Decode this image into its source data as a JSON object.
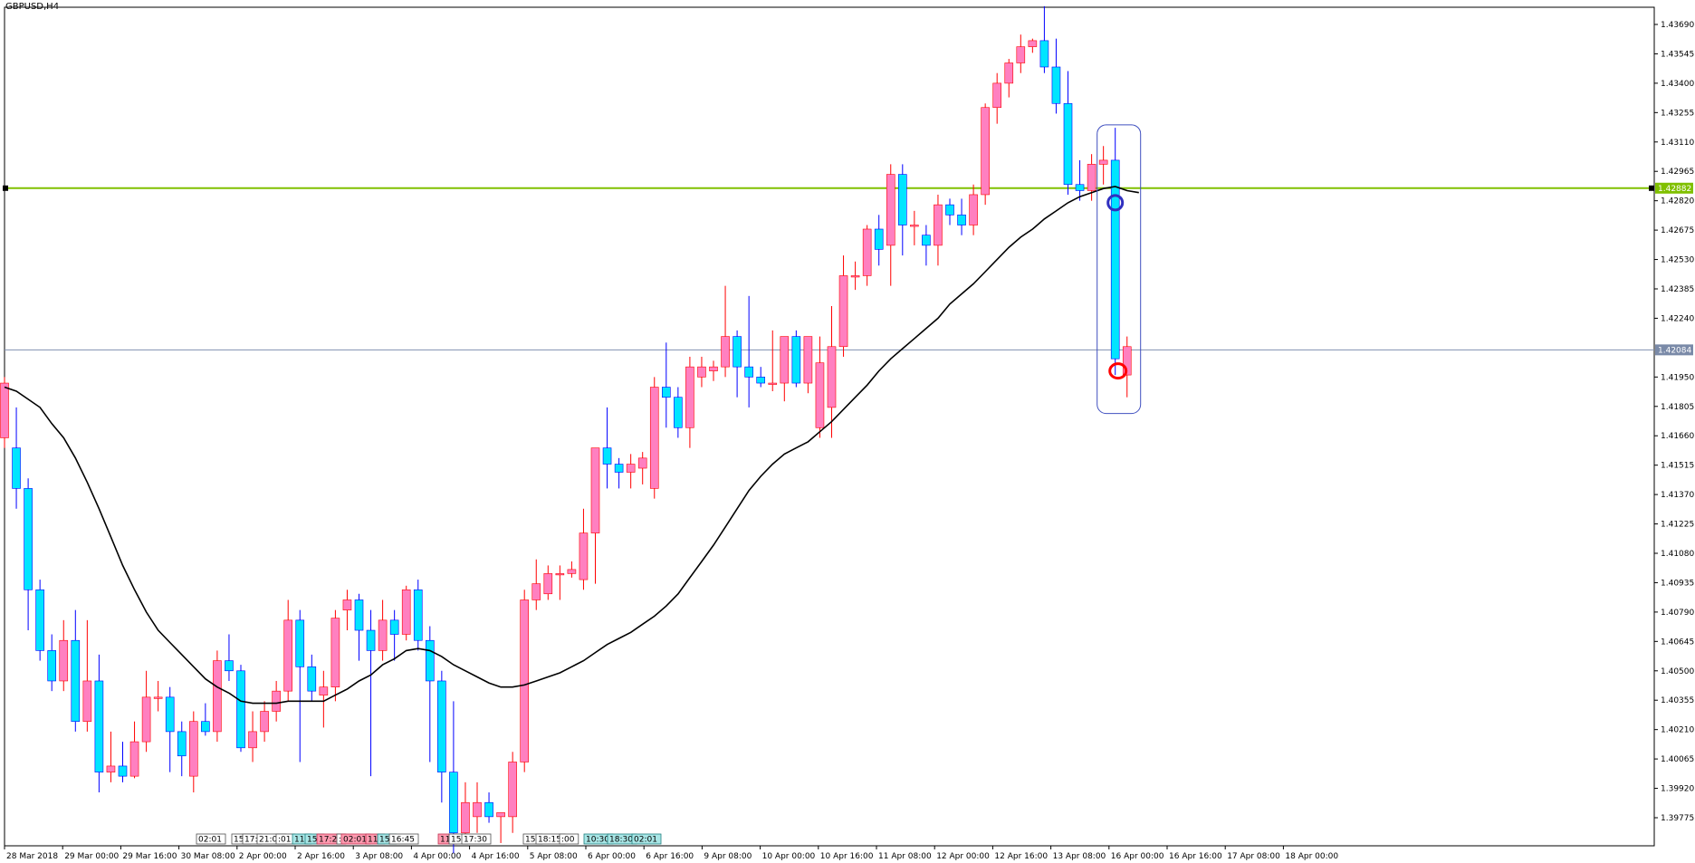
{
  "window": {
    "title": "GBPUSD,H4"
  },
  "colors": {
    "bull_candle": "#ff80c0",
    "bear_candle": "#00e5ff",
    "bull_wick": "#ff0000",
    "bear_wick": "#0000ff",
    "moving_average": "#000000",
    "green_line": "#80c000",
    "gray_line": "#8090b0",
    "blue_circle": "#3030c0",
    "red_circle": "#ff0000",
    "rectangle": "#4050c0"
  },
  "price_axis": {
    "labels": [
      "1.43690",
      "1.43545",
      "1.43400",
      "1.43255",
      "1.43110",
      "1.42965",
      "1.42820",
      "1.42675",
      "1.42530",
      "1.42385",
      "1.42240",
      "1.41950",
      "1.41805",
      "1.41660",
      "1.41515",
      "1.41370",
      "1.41225",
      "1.41080",
      "1.40935",
      "1.40790",
      "1.40645",
      "1.40500",
      "1.40355",
      "1.40210",
      "1.40065",
      "1.39920",
      "1.39775"
    ],
    "green_line_label": "1.42882",
    "gray_line_label": "1.42084"
  },
  "time_axis": {
    "labels": [
      "28 Mar 2018",
      "29 Mar 00:00",
      "29 Mar 16:00",
      "30 Mar 08:00",
      "2 Apr 00:00",
      "2 Apr 16:00",
      "3 Apr 08:00",
      "4 Apr 00:00",
      "4 Apr 16:00",
      "5 Apr 08:00",
      "6 Apr 00:00",
      "6 Apr 16:00",
      "9 Apr 08:00",
      "10 Apr 00:00",
      "10 Apr 16:00",
      "11 Apr 08:00",
      "12 Apr 00:00",
      "12 Apr 16:00",
      "13 Apr 08:00",
      "16 Apr 00:00",
      "16 Apr 16:00",
      "17 Apr 08:00",
      "18 Apr 00:00"
    ]
  },
  "event_tags": [
    {
      "text": "02:01",
      "color": "gray"
    },
    {
      "text": "15:",
      "color": "gray"
    },
    {
      "text": "17:",
      "color": "gray"
    },
    {
      "text": "21:00",
      "color": "gray"
    },
    {
      "text": ":01",
      "color": "gray"
    },
    {
      "text": "11:",
      "color": "teal"
    },
    {
      "text": "15:",
      "color": "teal"
    },
    {
      "text": "17:20",
      "color": "pink"
    },
    {
      "text": ":",
      "color": "gray"
    },
    {
      "text": "02:01",
      "color": "pink"
    },
    {
      "text": "11:",
      "color": "pink"
    },
    {
      "text": "15:",
      "color": "teal"
    },
    {
      "text": "16:45",
      "color": "gray"
    },
    {
      "text": "11:",
      "color": "pink"
    },
    {
      "text": "15:",
      "color": "gray"
    },
    {
      "text": "17:30",
      "color": "gray"
    },
    {
      "text": "15:",
      "color": "gray"
    },
    {
      "text": "18:15",
      "color": "gray"
    },
    {
      "text": ":00",
      "color": "gray"
    },
    {
      "text": "10:30",
      "color": "teal"
    },
    {
      "text": "18:30",
      "color": "teal"
    },
    {
      "text": "02:01",
      "color": "teal"
    }
  ],
  "chart_data": {
    "type": "candlestick",
    "symbol": "GBPUSD",
    "timeframe": "H4",
    "ylim": [
      1.397,
      1.4378
    ],
    "horizontal_lines": [
      1.42882,
      1.42084
    ],
    "candles": [
      {
        "o": 1.4165,
        "h": 1.4195,
        "l": 1.416,
        "c": 1.4192
      },
      {
        "o": 1.416,
        "h": 1.418,
        "l": 1.413,
        "c": 1.414
      },
      {
        "o": 1.414,
        "h": 1.4145,
        "l": 1.407,
        "c": 1.409
      },
      {
        "o": 1.409,
        "h": 1.4095,
        "l": 1.4055,
        "c": 1.406
      },
      {
        "o": 1.406,
        "h": 1.4068,
        "l": 1.404,
        "c": 1.4045
      },
      {
        "o": 1.4045,
        "h": 1.4075,
        "l": 1.404,
        "c": 1.4065
      },
      {
        "o": 1.4065,
        "h": 1.408,
        "l": 1.402,
        "c": 1.4025
      },
      {
        "o": 1.4025,
        "h": 1.4075,
        "l": 1.402,
        "c": 1.4045
      },
      {
        "o": 1.4045,
        "h": 1.4058,
        "l": 1.399,
        "c": 1.4
      },
      {
        "o": 1.4,
        "h": 1.402,
        "l": 1.3995,
        "c": 1.4003
      },
      {
        "o": 1.4003,
        "h": 1.4015,
        "l": 1.3995,
        "c": 1.3998
      },
      {
        "o": 1.3998,
        "h": 1.4025,
        "l": 1.3997,
        "c": 1.4015
      },
      {
        "o": 1.4015,
        "h": 1.405,
        "l": 1.401,
        "c": 1.4037
      },
      {
        "o": 1.4037,
        "h": 1.4045,
        "l": 1.403,
        "c": 1.4037
      },
      {
        "o": 1.4037,
        "h": 1.4042,
        "l": 1.4,
        "c": 1.402
      },
      {
        "o": 1.402,
        "h": 1.4025,
        "l": 1.3998,
        "c": 1.4008
      },
      {
        "o": 1.3998,
        "h": 1.403,
        "l": 1.399,
        "c": 1.4025
      },
      {
        "o": 1.4025,
        "h": 1.4034,
        "l": 1.4018,
        "c": 1.402
      },
      {
        "o": 1.402,
        "h": 1.406,
        "l": 1.4015,
        "c": 1.4055
      },
      {
        "o": 1.4055,
        "h": 1.4068,
        "l": 1.4045,
        "c": 1.405
      },
      {
        "o": 1.405,
        "h": 1.4053,
        "l": 1.401,
        "c": 1.4012
      },
      {
        "o": 1.4012,
        "h": 1.403,
        "l": 1.4005,
        "c": 1.402
      },
      {
        "o": 1.402,
        "h": 1.4035,
        "l": 1.4015,
        "c": 1.403
      },
      {
        "o": 1.403,
        "h": 1.4045,
        "l": 1.4025,
        "c": 1.404
      },
      {
        "o": 1.404,
        "h": 1.4085,
        "l": 1.4035,
        "c": 1.4075
      },
      {
        "o": 1.4075,
        "h": 1.408,
        "l": 1.4005,
        "c": 1.4052
      },
      {
        "o": 1.4052,
        "h": 1.4058,
        "l": 1.4035,
        "c": 1.404
      },
      {
        "o": 1.4038,
        "h": 1.405,
        "l": 1.4022,
        "c": 1.4042
      },
      {
        "o": 1.4042,
        "h": 1.408,
        "l": 1.4035,
        "c": 1.4076
      },
      {
        "o": 1.408,
        "h": 1.409,
        "l": 1.407,
        "c": 1.4085
      },
      {
        "o": 1.4085,
        "h": 1.4088,
        "l": 1.4055,
        "c": 1.407
      },
      {
        "o": 1.407,
        "h": 1.408,
        "l": 1.3998,
        "c": 1.406
      },
      {
        "o": 1.406,
        "h": 1.4085,
        "l": 1.4055,
        "c": 1.4075
      },
      {
        "o": 1.4075,
        "h": 1.408,
        "l": 1.4055,
        "c": 1.4068
      },
      {
        "o": 1.4068,
        "h": 1.4092,
        "l": 1.4065,
        "c": 1.409
      },
      {
        "o": 1.409,
        "h": 1.4095,
        "l": 1.406,
        "c": 1.4065
      },
      {
        "o": 1.4065,
        "h": 1.4072,
        "l": 1.4005,
        "c": 1.4045
      },
      {
        "o": 1.4045,
        "h": 1.405,
        "l": 1.3985,
        "c": 1.4
      },
      {
        "o": 1.4,
        "h": 1.4035,
        "l": 1.396,
        "c": 1.397
      },
      {
        "o": 1.397,
        "h": 1.3995,
        "l": 1.3965,
        "c": 1.3985
      },
      {
        "o": 1.3978,
        "h": 1.3995,
        "l": 1.397,
        "c": 1.3985
      },
      {
        "o": 1.3985,
        "h": 1.399,
        "l": 1.3975,
        "c": 1.3978
      },
      {
        "o": 1.3978,
        "h": 1.398,
        "l": 1.3965,
        "c": 1.398
      },
      {
        "o": 1.3978,
        "h": 1.401,
        "l": 1.397,
        "c": 1.4005
      },
      {
        "o": 1.4005,
        "h": 1.409,
        "l": 1.4,
        "c": 1.4085
      },
      {
        "o": 1.4085,
        "h": 1.4105,
        "l": 1.408,
        "c": 1.4093
      },
      {
        "o": 1.4088,
        "h": 1.4102,
        "l": 1.4085,
        "c": 1.4098
      },
      {
        "o": 1.4098,
        "h": 1.4102,
        "l": 1.4085,
        "c": 1.4098
      },
      {
        "o": 1.4098,
        "h": 1.4104,
        "l": 1.4096,
        "c": 1.41
      },
      {
        "o": 1.4095,
        "h": 1.413,
        "l": 1.409,
        "c": 1.4118
      },
      {
        "o": 1.4118,
        "h": 1.416,
        "l": 1.4093,
        "c": 1.416
      },
      {
        "o": 1.416,
        "h": 1.418,
        "l": 1.414,
        "c": 1.4152
      },
      {
        "o": 1.4152,
        "h": 1.4155,
        "l": 1.414,
        "c": 1.4148
      },
      {
        "o": 1.4148,
        "h": 1.4157,
        "l": 1.414,
        "c": 1.4152
      },
      {
        "o": 1.415,
        "h": 1.4158,
        "l": 1.4142,
        "c": 1.4155
      },
      {
        "o": 1.414,
        "h": 1.4195,
        "l": 1.4135,
        "c": 1.419
      },
      {
        "o": 1.419,
        "h": 1.4212,
        "l": 1.417,
        "c": 1.4185
      },
      {
        "o": 1.4185,
        "h": 1.419,
        "l": 1.4165,
        "c": 1.417
      },
      {
        "o": 1.417,
        "h": 1.4205,
        "l": 1.416,
        "c": 1.42
      },
      {
        "o": 1.4195,
        "h": 1.4205,
        "l": 1.419,
        "c": 1.42
      },
      {
        "o": 1.4198,
        "h": 1.4203,
        "l": 1.4193,
        "c": 1.42
      },
      {
        "o": 1.42,
        "h": 1.424,
        "l": 1.4195,
        "c": 1.4215
      },
      {
        "o": 1.4215,
        "h": 1.4218,
        "l": 1.4185,
        "c": 1.42
      },
      {
        "o": 1.42,
        "h": 1.4235,
        "l": 1.418,
        "c": 1.4195
      },
      {
        "o": 1.4195,
        "h": 1.42,
        "l": 1.419,
        "c": 1.4192
      },
      {
        "o": 1.4192,
        "h": 1.4218,
        "l": 1.4188,
        "c": 1.4192
      },
      {
        "o": 1.4192,
        "h": 1.4215,
        "l": 1.4183,
        "c": 1.4215
      },
      {
        "o": 1.4215,
        "h": 1.4218,
        "l": 1.419,
        "c": 1.4192
      },
      {
        "o": 1.4192,
        "h": 1.4212,
        "l": 1.4187,
        "c": 1.4215
      },
      {
        "o": 1.417,
        "h": 1.4215,
        "l": 1.4165,
        "c": 1.4202
      },
      {
        "o": 1.418,
        "h": 1.423,
        "l": 1.4165,
        "c": 1.421
      },
      {
        "o": 1.421,
        "h": 1.4255,
        "l": 1.4205,
        "c": 1.4245
      },
      {
        "o": 1.4245,
        "h": 1.4252,
        "l": 1.4238,
        "c": 1.4245
      },
      {
        "o": 1.4245,
        "h": 1.427,
        "l": 1.424,
        "c": 1.4268
      },
      {
        "o": 1.4268,
        "h": 1.4275,
        "l": 1.425,
        "c": 1.4258
      },
      {
        "o": 1.426,
        "h": 1.43,
        "l": 1.424,
        "c": 1.4295
      },
      {
        "o": 1.4295,
        "h": 1.43,
        "l": 1.4255,
        "c": 1.427
      },
      {
        "o": 1.427,
        "h": 1.4277,
        "l": 1.426,
        "c": 1.427
      },
      {
        "o": 1.4265,
        "h": 1.427,
        "l": 1.425,
        "c": 1.426
      },
      {
        "o": 1.426,
        "h": 1.4285,
        "l": 1.425,
        "c": 1.428
      },
      {
        "o": 1.428,
        "h": 1.4283,
        "l": 1.427,
        "c": 1.4275
      },
      {
        "o": 1.4275,
        "h": 1.4283,
        "l": 1.4265,
        "c": 1.427
      },
      {
        "o": 1.427,
        "h": 1.429,
        "l": 1.4265,
        "c": 1.4285
      },
      {
        "o": 1.4285,
        "h": 1.433,
        "l": 1.428,
        "c": 1.4328
      },
      {
        "o": 1.4328,
        "h": 1.4345,
        "l": 1.432,
        "c": 1.434
      },
      {
        "o": 1.434,
        "h": 1.4352,
        "l": 1.4333,
        "c": 1.435
      },
      {
        "o": 1.435,
        "h": 1.4364,
        "l": 1.4345,
        "c": 1.4358
      },
      {
        "o": 1.4358,
        "h": 1.4362,
        "l": 1.4355,
        "c": 1.4361
      },
      {
        "o": 1.4361,
        "h": 1.4378,
        "l": 1.4345,
        "c": 1.4348
      },
      {
        "o": 1.4348,
        "h": 1.4362,
        "l": 1.4325,
        "c": 1.433
      },
      {
        "o": 1.433,
        "h": 1.4346,
        "l": 1.4285,
        "c": 1.429
      },
      {
        "o": 1.429,
        "h": 1.4302,
        "l": 1.4282,
        "c": 1.4287
      },
      {
        "o": 1.4287,
        "h": 1.4305,
        "l": 1.4282,
        "c": 1.43
      },
      {
        "o": 1.43,
        "h": 1.4309,
        "l": 1.429,
        "c": 1.4302
      },
      {
        "o": 1.4302,
        "h": 1.4318,
        "l": 1.4196,
        "c": 1.4204
      },
      {
        "o": 1.4196,
        "h": 1.4215,
        "l": 1.4185,
        "c": 1.421
      }
    ],
    "moving_average": [
      1.419,
      1.4188,
      1.4184,
      1.418,
      1.4172,
      1.4165,
      1.4155,
      1.4143,
      1.413,
      1.4116,
      1.4102,
      1.409,
      1.4079,
      1.407,
      1.4064,
      1.4058,
      1.4052,
      1.4046,
      1.4042,
      1.4039,
      1.4035,
      1.4034,
      1.4034,
      1.4034,
      1.4035,
      1.4035,
      1.4035,
      1.4035,
      1.4038,
      1.4041,
      1.4045,
      1.4048,
      1.4053,
      1.4056,
      1.406,
      1.4061,
      1.406,
      1.4057,
      1.4053,
      1.405,
      1.4047,
      1.4044,
      1.4042,
      1.4042,
      1.4043,
      1.4045,
      1.4047,
      1.4049,
      1.4052,
      1.4055,
      1.4059,
      1.4063,
      1.4066,
      1.4069,
      1.4073,
      1.4077,
      1.4082,
      1.4088,
      1.4096,
      1.4104,
      1.4112,
      1.4121,
      1.413,
      1.4139,
      1.4146,
      1.4152,
      1.4157,
      1.416,
      1.4163,
      1.4168,
      1.4173,
      1.4179,
      1.4185,
      1.4191,
      1.4198,
      1.4204,
      1.4209,
      1.4214,
      1.4219,
      1.4224,
      1.4231,
      1.4236,
      1.4241,
      1.4247,
      1.4253,
      1.4259,
      1.4264,
      1.4268,
      1.4273,
      1.4277,
      1.4281,
      1.4284,
      1.4286,
      1.4288,
      1.4289,
      1.4287,
      1.4286
    ]
  }
}
